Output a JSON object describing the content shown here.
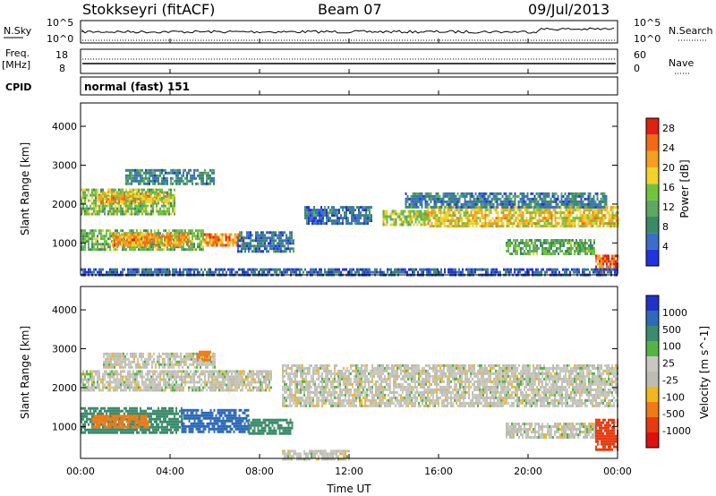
{
  "header": {
    "station": "Stokkseyri (fitACF)",
    "beam": "Beam 07",
    "date": "09/Jul/2013"
  },
  "top_panels": {
    "nsky_label": "N.Sky",
    "nsearch_label": "N.Search",
    "freq_label_top": "Freq.",
    "freq_label_unit": "[MHz]",
    "nave_label": "Nave",
    "cpid_label": "CPID",
    "cpid_text": "normal (fast) 151",
    "noise_left_ticks": [
      "10^5",
      "10^0"
    ],
    "noise_right_ticks": [
      "10^5",
      "10^0"
    ],
    "freq_left_ticks": [
      "18",
      "8"
    ],
    "freq_right_ticks": [
      "60",
      "0"
    ]
  },
  "colors": {
    "power_scale": [
      "#2233dd",
      "#3a6ec8",
      "#3b8a66",
      "#5fa860",
      "#72c23c",
      "#f0d22a",
      "#f3a020",
      "#f36a14",
      "#e02010"
    ],
    "velocity_scale": [
      "#1f33c8",
      "#2e6ab8",
      "#3c8c6c",
      "#55b345",
      "#c8c8c0",
      "#bdbdb4",
      "#f2b61e",
      "#f07a18",
      "#e83a10",
      "#e01010"
    ]
  },
  "chart_data": [
    {
      "type": "heatmap",
      "name": "power",
      "ylabel": "Slant Range [km]",
      "xlabel": "Time UT",
      "x_ticks": [
        "00:00",
        "04:00",
        "08:00",
        "12:00",
        "16:00",
        "20:00",
        "00:00"
      ],
      "xlim": [
        0,
        24
      ],
      "ylim": [
        180,
        4600
      ],
      "y_ticks": [
        1000,
        2000,
        3000,
        4000
      ],
      "colorbar": {
        "label": "Power [dB]",
        "ticks": [
          4,
          8,
          12,
          16,
          20,
          24,
          28
        ],
        "range": [
          0,
          30
        ]
      },
      "regions": [
        {
          "t": [
            0.0,
            4.2
          ],
          "r": [
            1750,
            2400
          ],
          "level": 14
        },
        {
          "t": [
            0.8,
            4.0
          ],
          "r": [
            2050,
            2300
          ],
          "level": 20
        },
        {
          "t": [
            0.0,
            5.5
          ],
          "r": [
            850,
            1350
          ],
          "level": 13
        },
        {
          "t": [
            1.4,
            4.8
          ],
          "r": [
            950,
            1250
          ],
          "level": 22
        },
        {
          "t": [
            5.5,
            7.3
          ],
          "r": [
            950,
            1250
          ],
          "level": 23
        },
        {
          "t": [
            2.0,
            6.0
          ],
          "r": [
            2550,
            2900
          ],
          "level": 8
        },
        {
          "t": [
            7.0,
            9.5
          ],
          "r": [
            750,
            1300
          ],
          "level": 6
        },
        {
          "t": [
            10.0,
            13.0
          ],
          "r": [
            1500,
            1950
          ],
          "level": 6
        },
        {
          "t": [
            13.5,
            15.5
          ],
          "r": [
            1450,
            1850
          ],
          "level": 16
        },
        {
          "t": [
            15.5,
            24.0
          ],
          "r": [
            1450,
            1950
          ],
          "level": 19
        },
        {
          "t": [
            14.5,
            23.5
          ],
          "r": [
            1950,
            2300
          ],
          "level": 7
        },
        {
          "t": [
            19.0,
            23.0
          ],
          "r": [
            700,
            1100
          ],
          "level": 12
        },
        {
          "t": [
            23.0,
            24.0
          ],
          "r": [
            250,
            700
          ],
          "level": 26
        },
        {
          "t": [
            0.0,
            24.0
          ],
          "r": [
            180,
            350
          ],
          "level": 5
        }
      ]
    },
    {
      "type": "heatmap",
      "name": "velocity",
      "ylabel": "Slant Range [km]",
      "xlabel": "Time UT",
      "x_ticks": [
        "00:00",
        "04:00",
        "08:00",
        "12:00",
        "16:00",
        "20:00",
        "00:00"
      ],
      "xlim": [
        0,
        24
      ],
      "ylim": [
        180,
        4600
      ],
      "y_ticks": [
        1000,
        2000,
        3000,
        4000
      ],
      "colorbar": {
        "label": "Velocity [m s^-1]",
        "ticks": [
          "1000",
          "500",
          "100",
          "25",
          "-25",
          "-100",
          "-500",
          "-1000"
        ]
      },
      "regions": [
        {
          "t": [
            0.0,
            8.5
          ],
          "r": [
            1900,
            2450
          ],
          "level": 0
        },
        {
          "t": [
            1.0,
            6.0
          ],
          "r": [
            2500,
            2900
          ],
          "level": 0
        },
        {
          "t": [
            0.0,
            4.5
          ],
          "r": [
            850,
            1500
          ],
          "level": 200
        },
        {
          "t": [
            0.5,
            3.0
          ],
          "r": [
            1000,
            1300
          ],
          "level": -150
        },
        {
          "t": [
            4.5,
            7.5
          ],
          "r": [
            850,
            1450
          ],
          "level": 600
        },
        {
          "t": [
            7.5,
            9.5
          ],
          "r": [
            800,
            1200
          ],
          "level": 150
        },
        {
          "t": [
            5.2,
            5.8
          ],
          "r": [
            2700,
            2950
          ],
          "level": -400
        },
        {
          "t": [
            9.0,
            24.0
          ],
          "r": [
            1550,
            2600
          ],
          "level": 0
        },
        {
          "t": [
            19.0,
            23.0
          ],
          "r": [
            750,
            1100
          ],
          "level": 0
        },
        {
          "t": [
            23.0,
            24.0
          ],
          "r": [
            400,
            1200
          ],
          "level": -700
        },
        {
          "t": [
            9.0,
            12.0
          ],
          "r": [
            180,
            400
          ],
          "level": 0
        }
      ]
    }
  ]
}
